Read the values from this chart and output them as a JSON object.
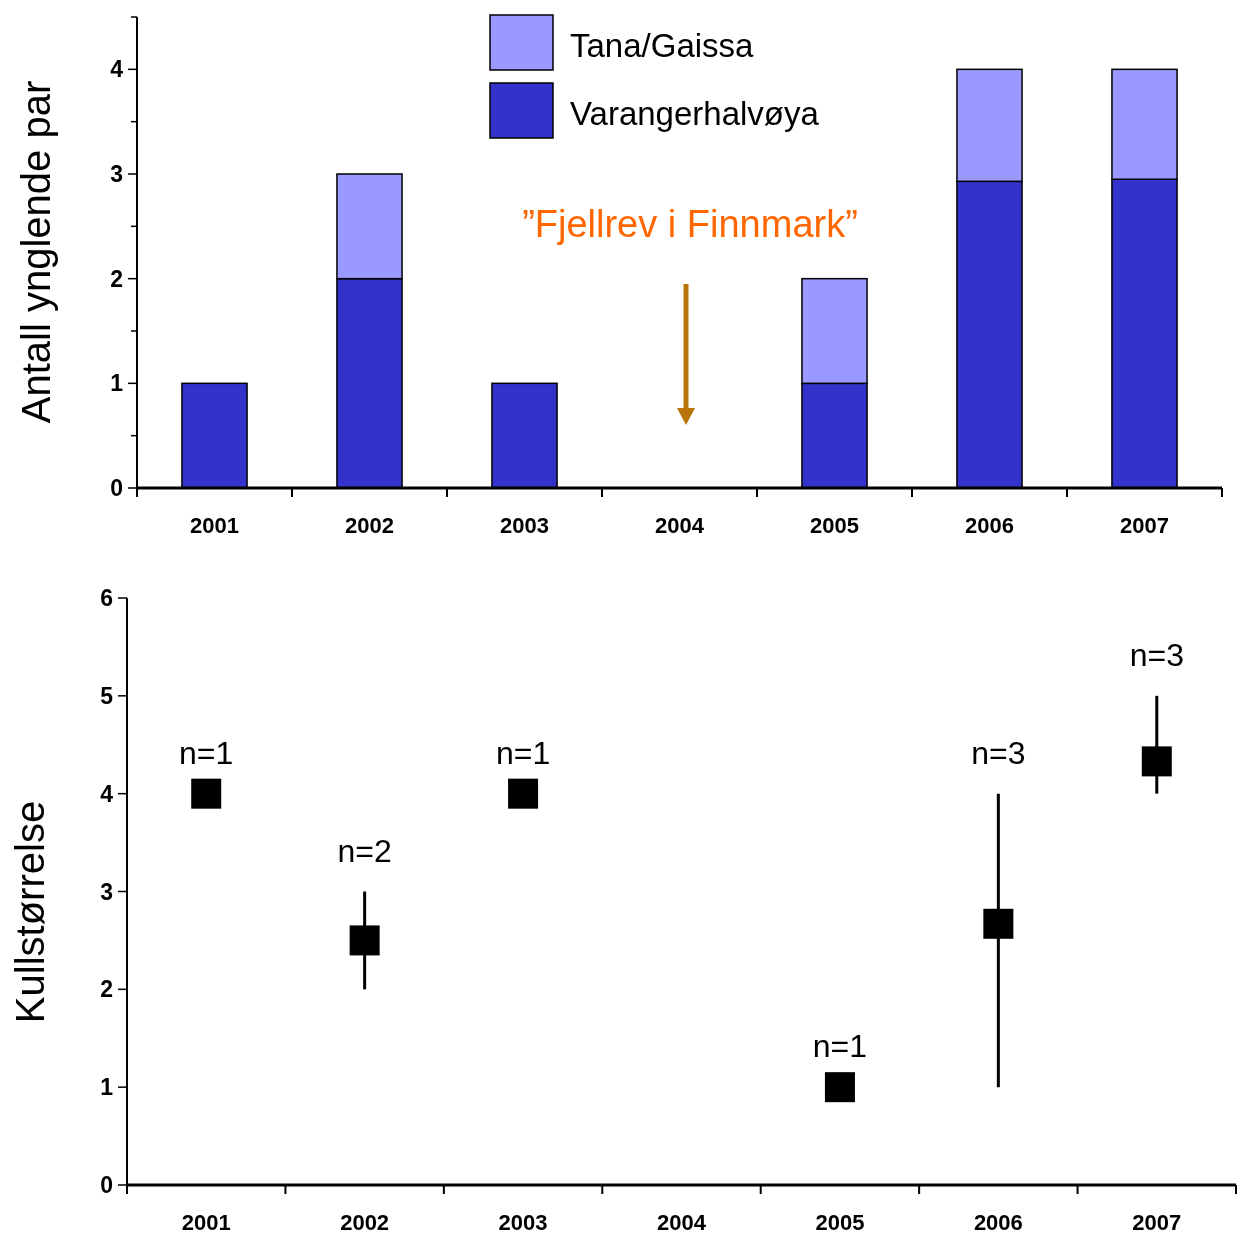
{
  "chart_data": [
    {
      "type": "bar",
      "stacked": true,
      "ylabel": "Antall ynglende par",
      "categories": [
        "2001",
        "2002",
        "2003",
        "2004",
        "2005",
        "2006",
        "2007"
      ],
      "series": [
        {
          "name": "Varangerhalvøya",
          "color": "#3333cc",
          "values": [
            1,
            2,
            1,
            0,
            1,
            2.93,
            2.95
          ]
        },
        {
          "name": "Tana/Gaissa",
          "color": "#9999ff",
          "values": [
            0,
            1,
            0,
            0,
            1,
            1.07,
            1.05
          ]
        }
      ],
      "ylim": [
        0,
        4.5
      ],
      "yticks": [
        0,
        {
          "value": 0.5,
          "label": null
        },
        1,
        {
          "value": 1.5,
          "label": null
        },
        2,
        {
          "value": 2.5,
          "label": null
        },
        3,
        {
          "value": 3.5,
          "label": null
        },
        4,
        {
          "value": 4.5,
          "label": null
        }
      ],
      "legend": "top",
      "annotations": [
        "”Fjellrev i Finnmark”"
      ]
    },
    {
      "type": "scatter",
      "ylabel": "Kullstørrelse",
      "categories": [
        "2001",
        "2002",
        "2003",
        "2004",
        "2005",
        "2006",
        "2007"
      ],
      "values": [
        4,
        2.5,
        4,
        null,
        1,
        2.67,
        4.33
      ],
      "color": "#000000",
      "marker": "square",
      "errors": [
        null,
        [
          2,
          3
        ],
        null,
        null,
        null,
        [
          1,
          4
        ],
        [
          4,
          5
        ]
      ],
      "annotations": [
        {
          "text": "n=1",
          "x": "2001",
          "y": 4
        },
        {
          "text": "n=2",
          "x": "2002",
          "y": 3
        },
        {
          "text": "n=1",
          "x": "2003",
          "y": 4
        },
        {
          "text": "n=1",
          "x": "2005",
          "y": 1
        },
        {
          "text": "n=3",
          "x": "2006",
          "y": 4
        },
        {
          "text": "n=3",
          "x": "2007",
          "y": 5
        }
      ],
      "ylim": [
        0,
        6
      ],
      "yticks": [
        0,
        1,
        2,
        3,
        4,
        5,
        6
      ]
    }
  ]
}
